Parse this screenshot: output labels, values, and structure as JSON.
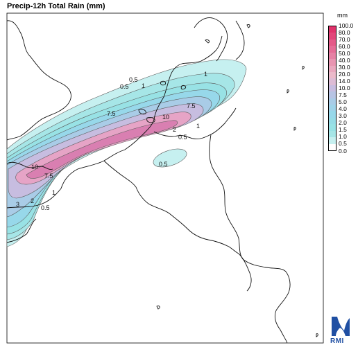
{
  "title": "Precip-12h Total Rain (mm)",
  "legend": {
    "unit": "mm",
    "ticks": [
      "100.0",
      "80.0",
      "70.0",
      "60.0",
      "50.0",
      "40.0",
      "30.0",
      "20.0",
      "14.0",
      "10.0",
      "7.5",
      "5.0",
      "4.0",
      "3.0",
      "2.0",
      "1.5",
      "1.0",
      "0.5",
      "0.0"
    ],
    "colors": [
      "#e0336b",
      "#e2467a",
      "#e45a88",
      "#e56d96",
      "#e681a4",
      "#e895b1",
      "#e9a8be",
      "#ebbaca",
      "#ddbcd5",
      "#c7bde0",
      "#b7c4e4",
      "#a9cce7",
      "#9fd3e9",
      "#97d8ea",
      "#96dce6",
      "#98e2e5",
      "#a6e6e7",
      "#c6f0f0",
      "#ffffff"
    ]
  },
  "contour_labels": [
    "0.5",
    "1",
    "7.5",
    "7.5",
    "10",
    "10",
    "7.5",
    "2",
    "1",
    "0.5",
    "0.5",
    "3",
    "2",
    "1",
    "0.5",
    "1",
    "0.5"
  ],
  "logo": {
    "text": "RMI",
    "color": "#1f4fa3"
  }
}
